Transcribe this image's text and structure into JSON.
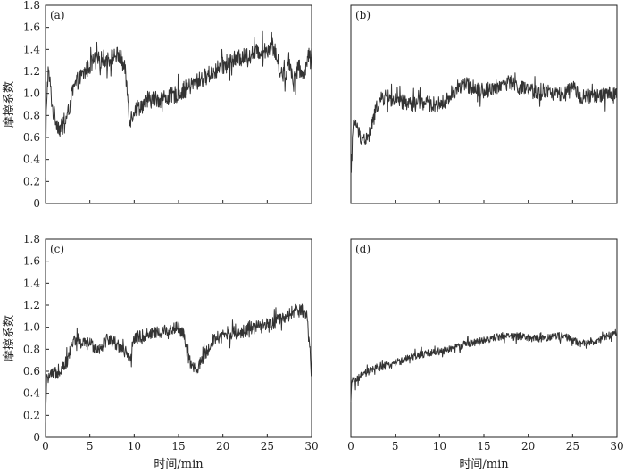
{
  "figure": {
    "xlabel": "时间/min",
    "ylabel": "摩擦系数"
  },
  "chart_data": [
    {
      "type": "line",
      "panel": "(a)",
      "xlim": [
        0,
        30
      ],
      "ylim": [
        0,
        1.8
      ],
      "xticks": [
        0,
        5,
        10,
        15,
        20,
        25,
        30
      ],
      "yticks": [
        0,
        0.2,
        0.4,
        0.6,
        0.8,
        1.0,
        1.2,
        1.4,
        1.6,
        1.8
      ],
      "ytick_labels": [
        "0",
        "0.2",
        "0.4",
        "0.6",
        "0.8",
        "1.0",
        "1.2",
        "1.4",
        "1.6",
        "1.8"
      ],
      "show_xtick_labels": false,
      "show_ylabel": true,
      "show_yticks": true,
      "noise": 0.08,
      "series": [
        {
          "color": "#333333",
          "x": [
            0,
            0.1,
            0.3,
            0.5,
            0.8,
            1.2,
            1.6,
            2.0,
            2.5,
            3.0,
            3.5,
            4.0,
            4.5,
            5.0,
            5.5,
            6.0,
            6.5,
            7.0,
            7.5,
            8.0,
            8.5,
            9.0,
            9.3,
            9.5,
            10,
            11,
            12,
            13,
            14,
            15,
            16,
            17,
            18,
            19,
            20,
            21,
            22,
            23,
            24,
            25,
            25.5,
            26,
            26.5,
            27,
            27.5,
            28,
            28.5,
            29,
            29.5,
            30
          ],
          "y": [
            0.2,
            0.9,
            1.2,
            1.1,
            0.85,
            0.75,
            0.68,
            0.7,
            0.8,
            1.0,
            1.1,
            1.15,
            1.2,
            1.25,
            1.3,
            1.3,
            1.32,
            1.3,
            1.33,
            1.35,
            1.32,
            1.2,
            0.95,
            0.75,
            0.85,
            0.9,
            0.95,
            0.95,
            0.97,
            1.0,
            1.05,
            1.1,
            1.15,
            1.2,
            1.25,
            1.3,
            1.32,
            1.35,
            1.38,
            1.4,
            1.45,
            1.35,
            1.2,
            1.15,
            1.3,
            1.1,
            1.25,
            1.15,
            1.3,
            1.38
          ]
        }
      ]
    },
    {
      "type": "line",
      "panel": "(b)",
      "xlim": [
        0,
        30
      ],
      "ylim": [
        0,
        1.8
      ],
      "xticks": [
        0,
        5,
        10,
        15,
        20,
        25,
        30
      ],
      "show_xtick_labels": false,
      "show_ylabel": false,
      "show_yticks": false,
      "noise": 0.07,
      "series": [
        {
          "color": "#333333",
          "x": [
            0,
            0.1,
            0.3,
            0.5,
            0.8,
            1.2,
            1.6,
            2.0,
            2.5,
            3.0,
            3.5,
            4.0,
            5,
            6,
            7,
            8,
            9,
            10,
            11,
            12,
            13,
            14,
            15,
            16,
            17,
            18,
            19,
            20,
            21,
            22,
            23,
            24,
            25,
            26,
            27,
            28,
            29,
            30
          ],
          "y": [
            0.2,
            0.5,
            0.7,
            0.75,
            0.65,
            0.6,
            0.58,
            0.6,
            0.75,
            0.9,
            0.95,
            0.97,
            0.93,
            0.92,
            0.9,
            0.92,
            0.9,
            0.9,
            0.95,
            1.05,
            1.08,
            1.05,
            1.02,
            1.05,
            1.08,
            1.1,
            1.05,
            1.03,
            1.0,
            1.02,
            1.0,
            0.98,
            1.05,
            0.97,
            0.97,
            0.98,
            1.0,
            1.0
          ]
        }
      ]
    },
    {
      "type": "line",
      "panel": "(c)",
      "xlim": [
        0,
        30
      ],
      "ylim": [
        0,
        1.8
      ],
      "xticks": [
        0,
        5,
        10,
        15,
        20,
        25,
        30
      ],
      "xtick_labels": [
        "0",
        "5",
        "10",
        "15",
        "20",
        "25",
        "30"
      ],
      "yticks": [
        0,
        0.2,
        0.4,
        0.6,
        0.8,
        1.0,
        1.2,
        1.4,
        1.6,
        1.8
      ],
      "ytick_labels": [
        "0",
        "0.2",
        "0.4",
        "0.6",
        "0.8",
        "1.0",
        "1.2",
        "1.4",
        "1.6",
        "1.8"
      ],
      "show_xtick_labels": true,
      "show_ylabel": true,
      "show_yticks": true,
      "noise": 0.06,
      "series": [
        {
          "color": "#333333",
          "x": [
            0,
            0.1,
            0.3,
            0.5,
            1.0,
            1.5,
            2.0,
            2.5,
            3.0,
            3.5,
            4,
            5,
            6,
            7,
            8,
            9,
            9.5,
            10,
            11,
            12,
            13,
            14,
            15,
            15.5,
            16,
            16.5,
            17,
            18,
            19,
            20,
            21,
            22,
            23,
            24,
            25,
            26,
            27,
            28,
            29,
            29.5,
            30
          ],
          "y": [
            0.1,
            0.5,
            0.55,
            0.55,
            0.58,
            0.6,
            0.65,
            0.7,
            0.85,
            0.9,
            0.85,
            0.85,
            0.8,
            0.9,
            0.85,
            0.78,
            0.68,
            0.9,
            0.92,
            0.95,
            0.95,
            0.98,
            1.0,
            0.95,
            0.75,
            0.65,
            0.6,
            0.75,
            0.9,
            0.92,
            0.95,
            0.95,
            1.0,
            1.0,
            1.02,
            1.05,
            1.08,
            1.15,
            1.15,
            1.1,
            0.55
          ]
        }
      ]
    },
    {
      "type": "line",
      "panel": "(d)",
      "xlim": [
        0,
        30
      ],
      "ylim": [
        0,
        1.8
      ],
      "xticks": [
        0,
        5,
        10,
        15,
        20,
        25,
        30
      ],
      "xtick_labels": [
        "0",
        "5",
        "10",
        "15",
        "20",
        "25",
        "30"
      ],
      "show_xtick_labels": true,
      "show_ylabel": false,
      "show_yticks": false,
      "noise": 0.035,
      "series": [
        {
          "color": "#333333",
          "x": [
            0,
            0.1,
            0.3,
            0.5,
            1,
            2,
            3,
            4,
            5,
            6,
            7,
            8,
            9,
            10,
            11,
            12,
            13,
            14,
            15,
            16,
            17,
            18,
            19,
            20,
            21,
            22,
            23,
            24,
            25,
            26,
            27,
            28,
            29,
            30
          ],
          "y": [
            0.3,
            0.5,
            0.55,
            0.5,
            0.55,
            0.6,
            0.63,
            0.65,
            0.68,
            0.7,
            0.73,
            0.75,
            0.77,
            0.78,
            0.8,
            0.82,
            0.85,
            0.86,
            0.88,
            0.9,
            0.92,
            0.92,
            0.92,
            0.9,
            0.9,
            0.9,
            0.92,
            0.92,
            0.88,
            0.85,
            0.87,
            0.88,
            0.92,
            0.96
          ]
        }
      ]
    }
  ]
}
